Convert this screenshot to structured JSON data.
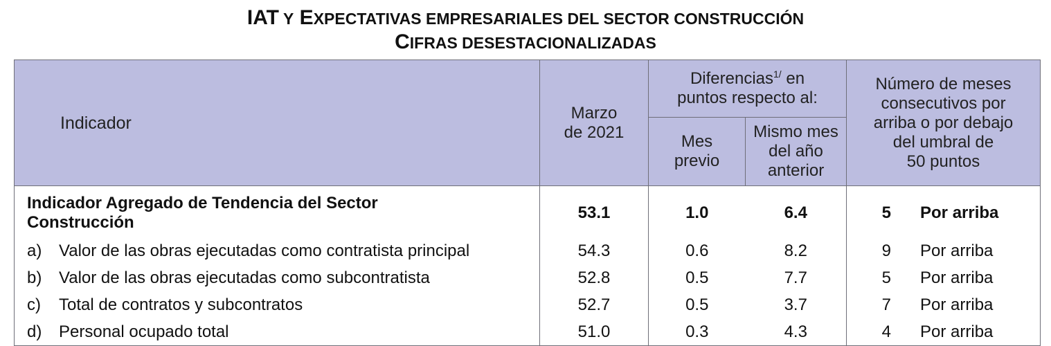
{
  "title": {
    "line1": {
      "a_cap": "IAT",
      "b_cap": " Y",
      "c_cap": " E",
      "c_small": "XPECTATIVAS EMPRESARIALES DEL SECTOR CONSTRUCCIÓN"
    },
    "line2": {
      "cap": "C",
      "small": "IFRAS DESESTACIONALIZADAS"
    }
  },
  "header": {
    "indicador": "Indicador",
    "marzo": "Marzo",
    "marzo_year": "de 2021",
    "diferencias_a": "Diferencias",
    "diferencias_sup": "1/",
    "diferencias_b": " en",
    "diferencias_c": "puntos respecto al:",
    "mes_previo_1": "Mes",
    "mes_previo_2": "previo",
    "mismo_mes_1": "Mismo mes",
    "mismo_mes_2": "del año",
    "mismo_mes_3": "anterior",
    "numero_1": "Número de meses",
    "numero_2": "consecutivos por",
    "numero_3": "arriba o por debajo",
    "numero_4": "del umbral de",
    "numero_5": "50 puntos"
  },
  "rows": [
    {
      "letter": "",
      "label_1": "Indicador Agregado de Tendencia del Sector",
      "label_2": "Construcción",
      "marzo": "53.1",
      "mes_previo": "1.0",
      "mismo_mes": "6.4",
      "meses": "5",
      "posicion": "Por arriba"
    },
    {
      "letter": "a)",
      "label": "Valor de las obras ejecutadas como contratista principal",
      "marzo": "54.3",
      "mes_previo": "0.6",
      "mismo_mes": "8.2",
      "meses": "9",
      "posicion": "Por arriba"
    },
    {
      "letter": "b)",
      "label": "Valor de las obras ejecutadas como subcontratista",
      "marzo": "52.8",
      "mes_previo": "0.5",
      "mismo_mes": "7.7",
      "meses": "5",
      "posicion": "Por arriba"
    },
    {
      "letter": "c)",
      "label": "Total de contratos y subcontratos",
      "marzo": "52.7",
      "mes_previo": "0.5",
      "mismo_mes": "3.7",
      "meses": "7",
      "posicion": "Por arriba"
    },
    {
      "letter": "d)",
      "label": "Personal ocupado total",
      "marzo": "51.0",
      "mes_previo": "0.3",
      "mismo_mes": "4.3",
      "meses": "4",
      "posicion": "Por arriba"
    }
  ],
  "colors": {
    "header_bg": "#bcbde0",
    "border": "#6e6e78"
  }
}
